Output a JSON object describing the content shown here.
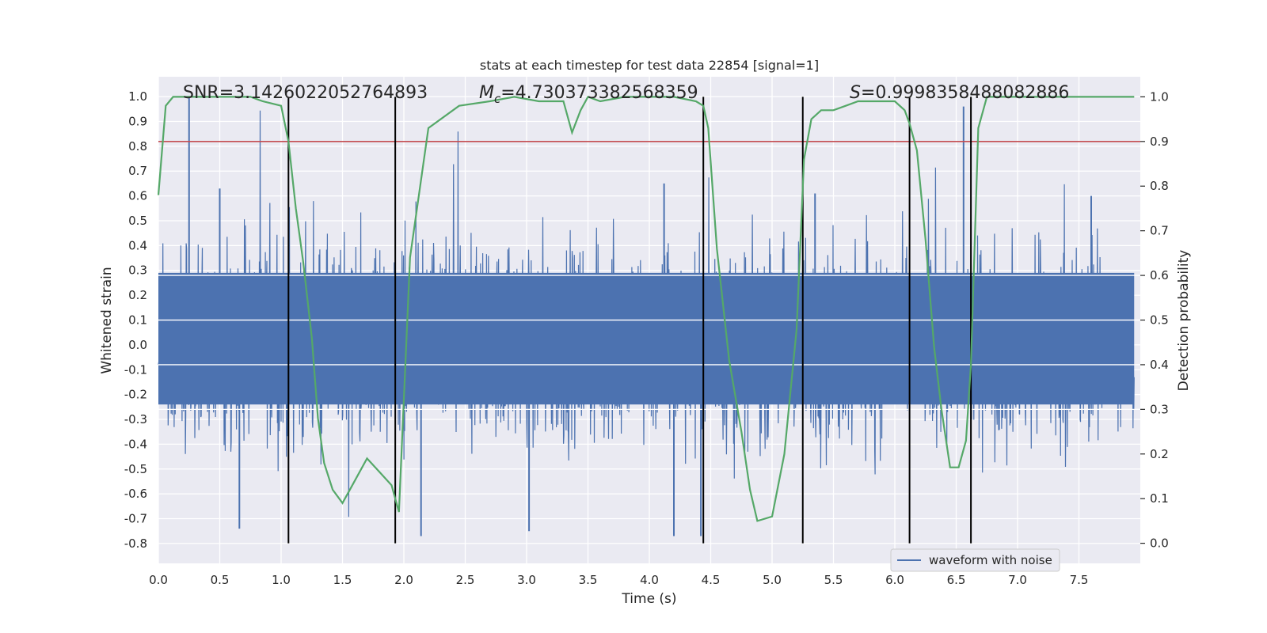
{
  "chart_data": {
    "type": "line",
    "title": "stats at each timestep for test data 22854 [signal=1]",
    "xlabel": "Time (s)",
    "ylabel_left": "Whitened strain",
    "ylabel_right": "Detection probability",
    "xlim": [
      0.0,
      8.0
    ],
    "ylim_left": [
      -0.88,
      1.08
    ],
    "ylim_right": [
      -0.045,
      1.045
    ],
    "xticks": [
      "0.0",
      "0.5",
      "1.0",
      "1.5",
      "2.0",
      "2.5",
      "3.0",
      "3.5",
      "4.0",
      "4.5",
      "5.0",
      "5.5",
      "6.0",
      "6.5",
      "7.0",
      "7.5"
    ],
    "yticks_left": [
      "-0.8",
      "-0.7",
      "-0.6",
      "-0.5",
      "-0.4",
      "-0.3",
      "-0.2",
      "-0.1",
      "0.0",
      "0.1",
      "0.2",
      "0.3",
      "0.4",
      "0.5",
      "0.6",
      "0.7",
      "0.8",
      "0.9",
      "1.0"
    ],
    "yticks_right": [
      "0.0",
      "0.1",
      "0.2",
      "0.3",
      "0.4",
      "0.5",
      "0.6",
      "0.7",
      "0.8",
      "0.9",
      "1.0"
    ],
    "grid": true,
    "annotations": {
      "snr_text": "SNR=3.1426022052764893",
      "mc_symbol": "M",
      "mc_subscript": "c",
      "mc_value": "=4.730373382568359",
      "s_symbol": "S",
      "s_value": "=0.9998358488082886"
    },
    "threshold_probability": 0.9,
    "vertical_lines_s": [
      1.06,
      1.93,
      4.44,
      5.25,
      6.12,
      6.62
    ],
    "legend": {
      "label": "waveform with noise",
      "placement": "lower-right"
    },
    "series": [
      {
        "name": "waveform with noise",
        "axis": "left",
        "color": "#4c72b0",
        "note": "dense noisy strain; envelope approx +/-0.3 with peaks near 1.0 and -0.77",
        "peaks": [
          {
            "x": 0.25,
            "y": 1.0
          },
          {
            "x": 6.56,
            "y": 0.96
          },
          {
            "x": 0.5,
            "y": 0.63
          },
          {
            "x": 0.66,
            "y": -0.74
          },
          {
            "x": 2.14,
            "y": -0.77
          },
          {
            "x": 4.2,
            "y": -0.77
          },
          {
            "x": 4.42,
            "y": -0.77
          },
          {
            "x": 3.02,
            "y": -0.75
          },
          {
            "x": 4.12,
            "y": 0.65
          },
          {
            "x": 5.35,
            "y": 0.61
          },
          {
            "x": 7.6,
            "y": 0.6
          }
        ]
      },
      {
        "name": "detection probability",
        "axis": "right",
        "color": "#55a868",
        "x": [
          0.0,
          0.06,
          0.12,
          0.2,
          0.3,
          0.5,
          0.75,
          0.85,
          1.0,
          1.06,
          1.12,
          1.18,
          1.25,
          1.3,
          1.35,
          1.42,
          1.5,
          1.58,
          1.7,
          1.8,
          1.9,
          1.96,
          2.05,
          2.2,
          2.45,
          2.7,
          2.9,
          3.1,
          3.3,
          3.37,
          3.44,
          3.5,
          3.6,
          3.8,
          4.0,
          4.2,
          4.38,
          4.44,
          4.48,
          4.55,
          4.65,
          4.75,
          4.82,
          4.88,
          5.0,
          5.1,
          5.2,
          5.26,
          5.32,
          5.4,
          5.5,
          5.6,
          5.7,
          5.8,
          6.0,
          6.08,
          6.12,
          6.18,
          6.25,
          6.32,
          6.38,
          6.45,
          6.52,
          6.58,
          6.62,
          6.68,
          6.75,
          6.85,
          7.0,
          7.5,
          7.95
        ],
        "y": [
          0.78,
          0.98,
          1.0,
          1.0,
          1.0,
          1.0,
          1.0,
          0.99,
          0.98,
          0.9,
          0.75,
          0.63,
          0.46,
          0.28,
          0.18,
          0.12,
          0.09,
          0.13,
          0.19,
          0.16,
          0.13,
          0.07,
          0.64,
          0.93,
          0.98,
          0.99,
          1.0,
          0.99,
          0.99,
          0.92,
          0.97,
          1.0,
          0.99,
          1.0,
          1.0,
          1.0,
          0.99,
          0.98,
          0.93,
          0.66,
          0.41,
          0.25,
          0.12,
          0.05,
          0.06,
          0.2,
          0.48,
          0.86,
          0.95,
          0.97,
          0.97,
          0.98,
          0.99,
          0.99,
          0.99,
          0.97,
          0.94,
          0.88,
          0.68,
          0.44,
          0.3,
          0.17,
          0.17,
          0.23,
          0.4,
          0.93,
          1.0,
          1.0,
          1.0,
          1.0,
          1.0
        ]
      }
    ]
  }
}
